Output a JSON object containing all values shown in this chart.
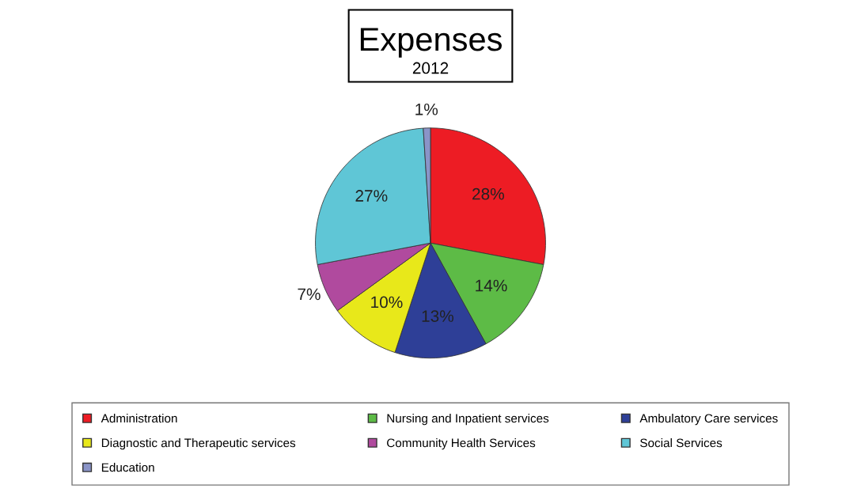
{
  "chart_data": {
    "type": "pie",
    "title": "Expenses",
    "subtitle": "2012",
    "categories": [
      "Administration",
      "Nursing and Inpatient services",
      "Ambulatory Care services",
      "Diagnostic and Therapeutic services",
      "Community Health Services",
      "Social Services",
      "Education"
    ],
    "values": [
      28,
      14,
      13,
      10,
      7,
      27,
      1
    ],
    "value_labels": [
      "28%",
      "14%",
      "13%",
      "10%",
      "7%",
      "27%",
      "1%"
    ],
    "colors": [
      "#ed1c24",
      "#5dbb46",
      "#2e3f97",
      "#e8e81a",
      "#b04a9e",
      "#5fc6d6",
      "#8a94c8"
    ],
    "legend": "bottom"
  }
}
